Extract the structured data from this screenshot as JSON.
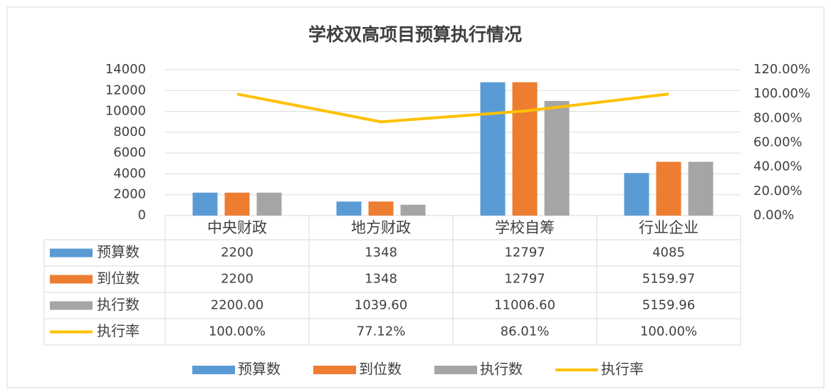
{
  "chart_data": {
    "type": "bar",
    "title": "学校双高项目预算执行情况",
    "categories": [
      "中央财政",
      "地方财政",
      "学校自筹",
      "行业企业"
    ],
    "series": [
      {
        "name": "预算数",
        "color": "#5b9bd5",
        "values": [
          2200,
          1348,
          12797,
          4085
        ]
      },
      {
        "name": "到位数",
        "color": "#ed7d31",
        "values": [
          2200,
          1348,
          12797,
          5159.97
        ]
      },
      {
        "name": "执行数",
        "color": "#a5a5a5",
        "values": [
          2200,
          1039.6,
          11006.6,
          5159.96
        ],
        "value_labels": [
          "2200.00",
          "1039.60",
          "11006.60",
          "5159.96"
        ]
      },
      {
        "name": "执行率",
        "color": "#ffc000",
        "type": "line",
        "axis": "y2",
        "values": [
          100,
          77.12,
          86.01,
          100
        ],
        "value_labels": [
          "100.00%",
          "77.12%",
          "86.01%",
          "100.00%"
        ]
      }
    ],
    "ylim": [
      0,
      14000
    ],
    "yticks": [
      0,
      2000,
      4000,
      6000,
      8000,
      10000,
      12000,
      14000
    ],
    "y2lim": [
      0,
      120
    ],
    "y2ticks": [
      {
        "value": 0,
        "label": "0.00%"
      },
      {
        "value": 20,
        "label": "20.00%"
      },
      {
        "value": 40,
        "label": "40.00%"
      },
      {
        "value": 60,
        "label": "60.00%"
      },
      {
        "value": 80,
        "label": "80.00%"
      },
      {
        "value": 100,
        "label": "100.00%"
      },
      {
        "value": 120,
        "label": "120.00%"
      }
    ],
    "grid": true,
    "legend": "bottom"
  }
}
